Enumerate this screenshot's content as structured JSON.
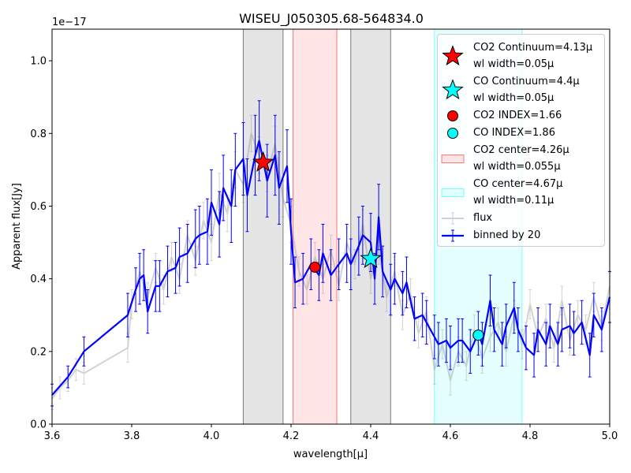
{
  "chart_data": {
    "type": "line",
    "title": "WISEU_J050305.68-564834.0",
    "x_label": "wavelength[μ]",
    "y_label": "Apparent flux[Jy]",
    "y_offset_label": "1e−17",
    "xlim": [
      3.6,
      5.0
    ],
    "ylim": [
      0,
      1.087
    ],
    "xticks": [
      {
        "value": 3.6,
        "label": "3.6"
      },
      {
        "value": 3.8,
        "label": "3.8"
      },
      {
        "value": 4.0,
        "label": "4.0"
      },
      {
        "value": 4.2,
        "label": "4.2"
      },
      {
        "value": 4.4,
        "label": "4.4"
      },
      {
        "value": 4.6,
        "label": "4.6"
      },
      {
        "value": 4.8,
        "label": "4.8"
      },
      {
        "value": 5.0,
        "label": "5.0"
      }
    ],
    "yticks": [
      {
        "value": 0,
        "label": "0.0"
      },
      0.2,
      0.4,
      0.6,
      0.8,
      {
        "value": 1.0,
        "label": "1.0"
      }
    ],
    "legend": "upper right",
    "markers": [
      {
        "name": "CO2 Continuum=4.13μ\nwl width=0.05μ",
        "shape": "star",
        "color": "#ff0000",
        "x": 4.13,
        "y": 0.72,
        "span": [
          4.08,
          4.18
        ],
        "span_color": "#999999"
      },
      {
        "name": "CO Continuum=4.4μ\nwl width=0.05μ",
        "shape": "star",
        "color": "#00ffff",
        "x": 4.4,
        "y": 0.455,
        "span": [
          4.35,
          4.45
        ],
        "span_color": "#999999"
      },
      {
        "name": "CO2 INDEX=1.66",
        "shape": "circle",
        "color": "#ff0000",
        "x": 4.26,
        "y": 0.432
      },
      {
        "name": "CO  INDEX=1.86",
        "shape": "circle",
        "color": "#00ffff",
        "x": 4.67,
        "y": 0.245
      }
    ],
    "spans": [
      {
        "name": "CO2 center=4.26μ\nwl width=0.055μ",
        "color": "#ff0000",
        "range": [
          4.205,
          4.315
        ]
      },
      {
        "name": "CO center=4.67μ\nwl width=0.11μ",
        "color": "#00ffff",
        "range": [
          4.56,
          4.78
        ]
      }
    ],
    "series": [
      {
        "name": "flux",
        "color": "#808080",
        "x": [
          3.6,
          3.62,
          3.64,
          3.66,
          3.68,
          3.79,
          3.8,
          3.82,
          3.84,
          3.86,
          3.88,
          3.9,
          3.92,
          3.94,
          3.96,
          3.98,
          4.0,
          4.02,
          4.04,
          4.06,
          4.08,
          4.1,
          4.12,
          4.14,
          4.16,
          4.18,
          4.2,
          4.22,
          4.24,
          4.26,
          4.28,
          4.3,
          4.32,
          4.34,
          4.36,
          4.38,
          4.4,
          4.42,
          4.44,
          4.46,
          4.48,
          4.5,
          4.52,
          4.54,
          4.56,
          4.58,
          4.6,
          4.62,
          4.64,
          4.66,
          4.68,
          4.7,
          4.72,
          4.74,
          4.76,
          4.78,
          4.8,
          4.82,
          4.84,
          4.86,
          4.88,
          4.9,
          4.92,
          4.94,
          4.96,
          4.98,
          5.0
        ],
        "values": [
          0.07,
          0.1,
          0.12,
          0.15,
          0.14,
          0.21,
          0.33,
          0.42,
          0.35,
          0.43,
          0.37,
          0.46,
          0.4,
          0.52,
          0.45,
          0.56,
          0.5,
          0.64,
          0.58,
          0.7,
          0.66,
          0.8,
          0.74,
          0.69,
          0.77,
          0.62,
          0.55,
          0.42,
          0.37,
          0.46,
          0.4,
          0.48,
          0.38,
          0.5,
          0.44,
          0.55,
          0.4,
          0.48,
          0.35,
          0.42,
          0.3,
          0.36,
          0.25,
          0.31,
          0.15,
          0.22,
          0.12,
          0.2,
          0.16,
          0.26,
          0.18,
          0.24,
          0.28,
          0.2,
          0.3,
          0.22,
          0.33,
          0.24,
          0.29,
          0.21,
          0.34,
          0.23,
          0.3,
          0.26,
          0.35,
          0.27,
          0.38
        ],
        "errors": [
          0.03,
          0.03,
          0.03,
          0.03,
          0.03,
          0.04,
          0.04,
          0.04,
          0.04,
          0.04,
          0.04,
          0.04,
          0.04,
          0.04,
          0.04,
          0.05,
          0.05,
          0.05,
          0.05,
          0.05,
          0.05,
          0.05,
          0.05,
          0.05,
          0.05,
          0.05,
          0.05,
          0.04,
          0.04,
          0.04,
          0.04,
          0.04,
          0.04,
          0.04,
          0.04,
          0.04,
          0.04,
          0.04,
          0.04,
          0.04,
          0.04,
          0.04,
          0.04,
          0.04,
          0.04,
          0.04,
          0.04,
          0.04,
          0.04,
          0.04,
          0.04,
          0.04,
          0.04,
          0.04,
          0.04,
          0.04,
          0.04,
          0.04,
          0.04,
          0.04,
          0.04,
          0.04,
          0.04,
          0.04,
          0.04,
          0.04,
          0.04
        ]
      },
      {
        "name": "binned by 20",
        "color": "#0000ff",
        "x": [
          3.6,
          3.64,
          3.68,
          3.79,
          3.81,
          3.82,
          3.83,
          3.84,
          3.86,
          3.87,
          3.89,
          3.91,
          3.92,
          3.94,
          3.96,
          3.97,
          3.99,
          4.0,
          4.02,
          4.03,
          4.05,
          4.06,
          4.08,
          4.09,
          4.11,
          4.12,
          4.14,
          4.16,
          4.17,
          4.19,
          4.2,
          4.21,
          4.23,
          4.25,
          4.27,
          4.28,
          4.3,
          4.32,
          4.34,
          4.35,
          4.37,
          4.38,
          4.4,
          4.41,
          4.42,
          4.43,
          4.45,
          4.46,
          4.48,
          4.49,
          4.51,
          4.53,
          4.54,
          4.56,
          4.57,
          4.59,
          4.6,
          4.62,
          4.63,
          4.65,
          4.67,
          4.68,
          4.7,
          4.71,
          4.73,
          4.74,
          4.76,
          4.77,
          4.79,
          4.81,
          4.82,
          4.84,
          4.85,
          4.87,
          4.88,
          4.9,
          4.91,
          4.93,
          4.95,
          4.96,
          4.98,
          5.0
        ],
        "values": [
          0.08,
          0.13,
          0.2,
          0.3,
          0.37,
          0.4,
          0.41,
          0.31,
          0.38,
          0.38,
          0.42,
          0.43,
          0.46,
          0.47,
          0.51,
          0.52,
          0.53,
          0.61,
          0.55,
          0.65,
          0.6,
          0.7,
          0.73,
          0.63,
          0.74,
          0.78,
          0.67,
          0.74,
          0.65,
          0.71,
          0.53,
          0.39,
          0.4,
          0.44,
          0.41,
          0.47,
          0.41,
          0.44,
          0.47,
          0.44,
          0.49,
          0.52,
          0.5,
          0.4,
          0.57,
          0.42,
          0.37,
          0.4,
          0.36,
          0.39,
          0.29,
          0.3,
          0.28,
          0.24,
          0.22,
          0.23,
          0.21,
          0.23,
          0.23,
          0.2,
          0.25,
          0.22,
          0.34,
          0.26,
          0.22,
          0.27,
          0.32,
          0.26,
          0.21,
          0.19,
          0.26,
          0.22,
          0.27,
          0.22,
          0.26,
          0.27,
          0.25,
          0.28,
          0.19,
          0.3,
          0.26,
          0.35
        ],
        "errors": [
          0.03,
          0.03,
          0.04,
          0.06,
          0.06,
          0.07,
          0.07,
          0.06,
          0.07,
          0.07,
          0.07,
          0.07,
          0.08,
          0.08,
          0.08,
          0.08,
          0.09,
          0.09,
          0.09,
          0.09,
          0.1,
          0.1,
          0.1,
          0.1,
          0.11,
          0.11,
          0.1,
          0.11,
          0.1,
          0.1,
          0.09,
          0.07,
          0.07,
          0.07,
          0.07,
          0.08,
          0.07,
          0.07,
          0.08,
          0.07,
          0.08,
          0.08,
          0.08,
          0.07,
          0.09,
          0.07,
          0.07,
          0.07,
          0.06,
          0.07,
          0.06,
          0.06,
          0.06,
          0.06,
          0.06,
          0.06,
          0.06,
          0.06,
          0.06,
          0.06,
          0.06,
          0.06,
          0.07,
          0.06,
          0.06,
          0.06,
          0.07,
          0.06,
          0.06,
          0.06,
          0.06,
          0.06,
          0.06,
          0.06,
          0.06,
          0.06,
          0.06,
          0.06,
          0.06,
          0.06,
          0.06,
          0.07
        ]
      }
    ]
  }
}
